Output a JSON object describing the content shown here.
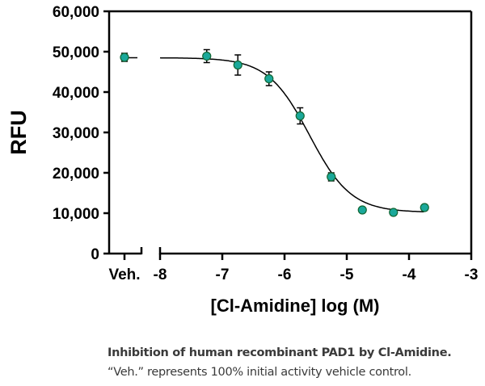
{
  "chart_data": {
    "type": "scatter",
    "ylabel": "RFU",
    "xlabel": "[Cl-Amidine] log (M)",
    "ylim": [
      0,
      60000
    ],
    "xlim": [
      -8,
      -3
    ],
    "yticks": [
      "0",
      "10,000",
      "20,000",
      "30,000",
      "40,000",
      "50,000",
      "60,000"
    ],
    "yticks_values": [
      0,
      10000,
      20000,
      30000,
      40000,
      50000,
      60000
    ],
    "xticks": [
      "-8",
      "-7",
      "-6",
      "-5",
      "-4",
      "-3"
    ],
    "xticks_values": [
      -8,
      -7,
      -6,
      -5,
      -4,
      -3
    ],
    "vehicle": {
      "label": "Veh.",
      "y": 48600,
      "err": 1000
    },
    "points": [
      {
        "x": -7.25,
        "y": 48900,
        "err": 1600
      },
      {
        "x": -6.75,
        "y": 46700,
        "err": 2500
      },
      {
        "x": -6.25,
        "y": 43300,
        "err": 1700
      },
      {
        "x": -5.75,
        "y": 34100,
        "err": 2000
      },
      {
        "x": -5.25,
        "y": 19000,
        "err": 1000
      },
      {
        "x": -4.75,
        "y": 10800,
        "err": 0
      },
      {
        "x": -4.25,
        "y": 10200,
        "err": 0
      },
      {
        "x": -3.75,
        "y": 11400,
        "err": 0
      }
    ],
    "fit": {
      "top": 48500,
      "bottom": 10200,
      "logIC50": -5.6,
      "hill": 1.3
    },
    "grid": false,
    "colors": {
      "marker": "#1aa89a",
      "line": "#000000"
    }
  },
  "caption": {
    "line1": "Inhibition of human recombinant PAD1 by Cl-Amidine.",
    "line2": "“Veh.” represents 100% initial activity vehicle control."
  }
}
